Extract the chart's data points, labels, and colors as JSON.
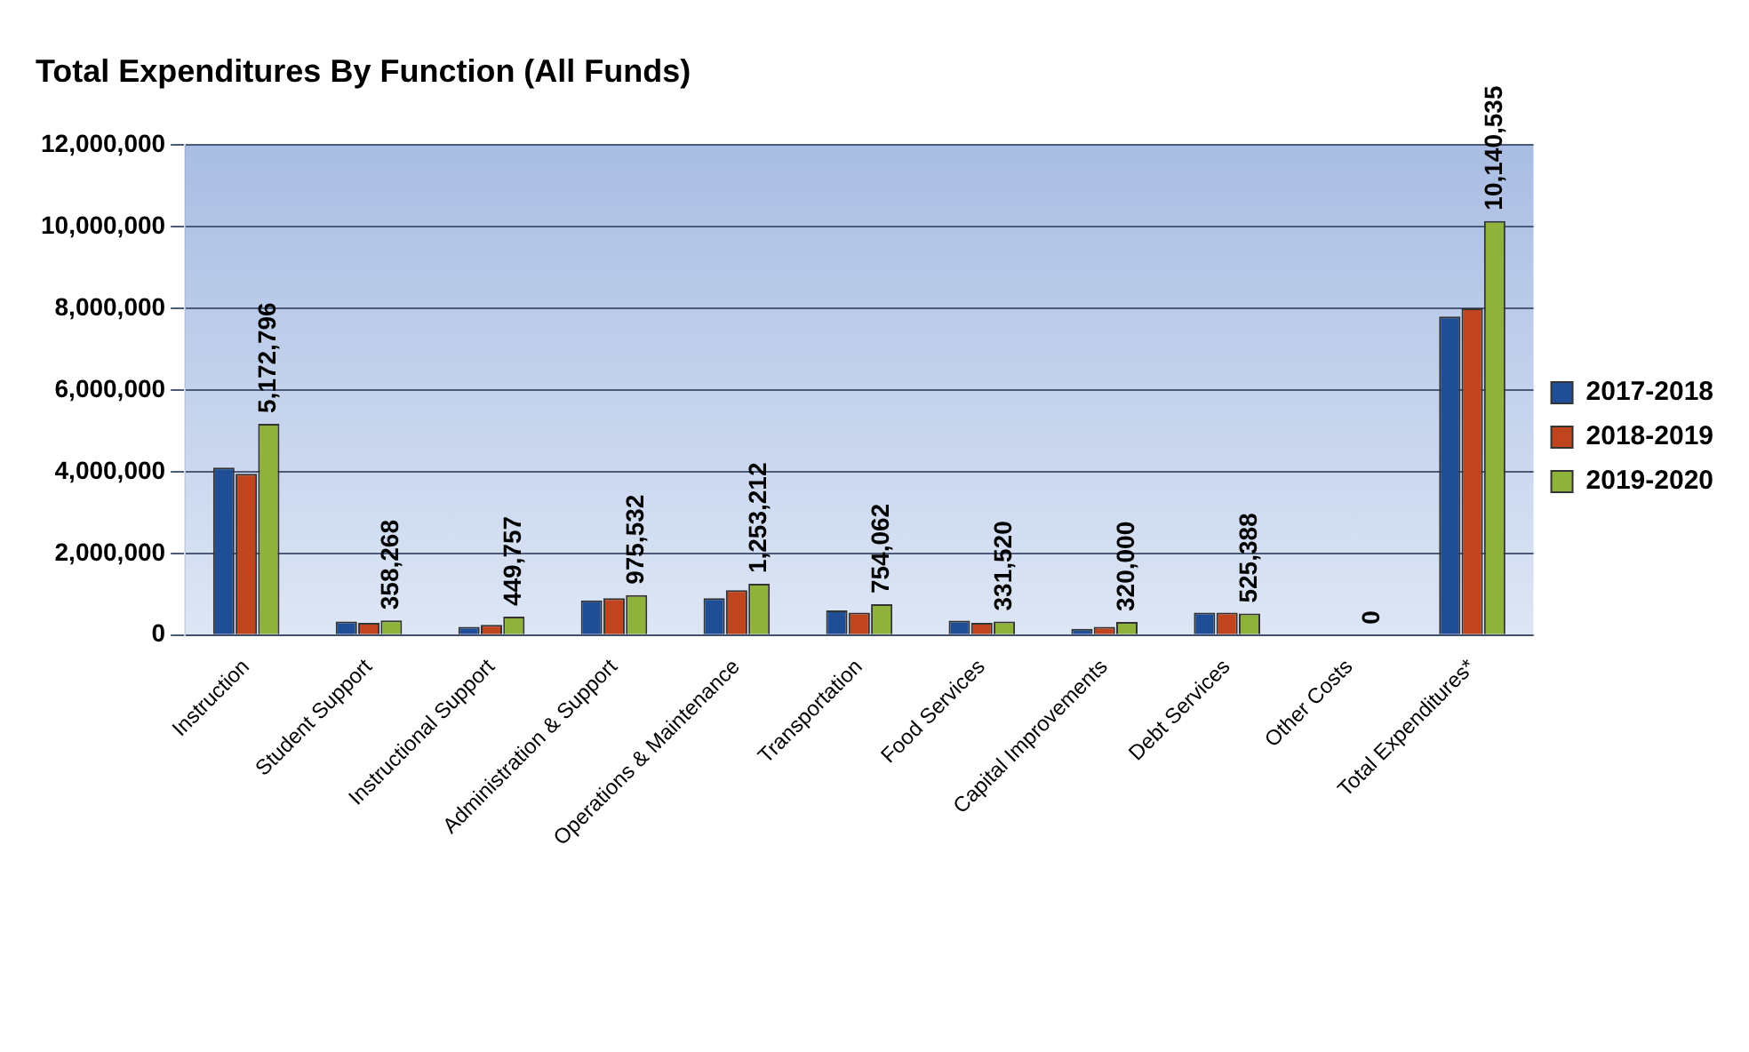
{
  "chart_data": {
    "type": "bar",
    "title": "Total Expenditures By Function (All Funds)",
    "categories": [
      "Instruction",
      "Student Support",
      "Instructional Support",
      "Administration & Support",
      "Operations & Maintenance",
      "Transportation",
      "Food Services",
      "Capital Improvements",
      "Debt Services",
      "Other Costs",
      "Total Expenditures*"
    ],
    "series": [
      {
        "name": "2017-2018",
        "color": "#1f4e96",
        "values": [
          4100000,
          330000,
          200000,
          850000,
          900000,
          600000,
          350000,
          150000,
          550000,
          null,
          7800000
        ]
      },
      {
        "name": "2018-2019",
        "color": "#c0441e",
        "values": [
          3950000,
          300000,
          250000,
          900000,
          1100000,
          550000,
          300000,
          200000,
          550000,
          null,
          8000000
        ]
      },
      {
        "name": "2019-2020",
        "color": "#8fb23a",
        "values": [
          5172796,
          358268,
          449757,
          975532,
          1253212,
          754062,
          331520,
          320000,
          525388,
          0,
          10140535
        ],
        "value_labels": [
          "5,172,796",
          "358,268",
          "449,757",
          "975,532",
          "1,253,212",
          "754,062",
          "331,520",
          "320,000",
          "525,388",
          "0",
          "10,140,535"
        ]
      }
    ],
    "ylim": [
      0,
      12000000
    ],
    "yticks": [
      0,
      {
        "value": 2000000,
        "label": "2,000,000"
      },
      {
        "value": 4000000,
        "label": "4,000,000"
      },
      {
        "value": 6000000,
        "label": "6,000,000"
      },
      {
        "value": 8000000,
        "label": "8,000,000"
      },
      {
        "value": 10000000,
        "label": "10,000,000"
      },
      {
        "value": 12000000,
        "label": "12,000,000"
      }
    ],
    "grid": "y",
    "legend": "right"
  }
}
